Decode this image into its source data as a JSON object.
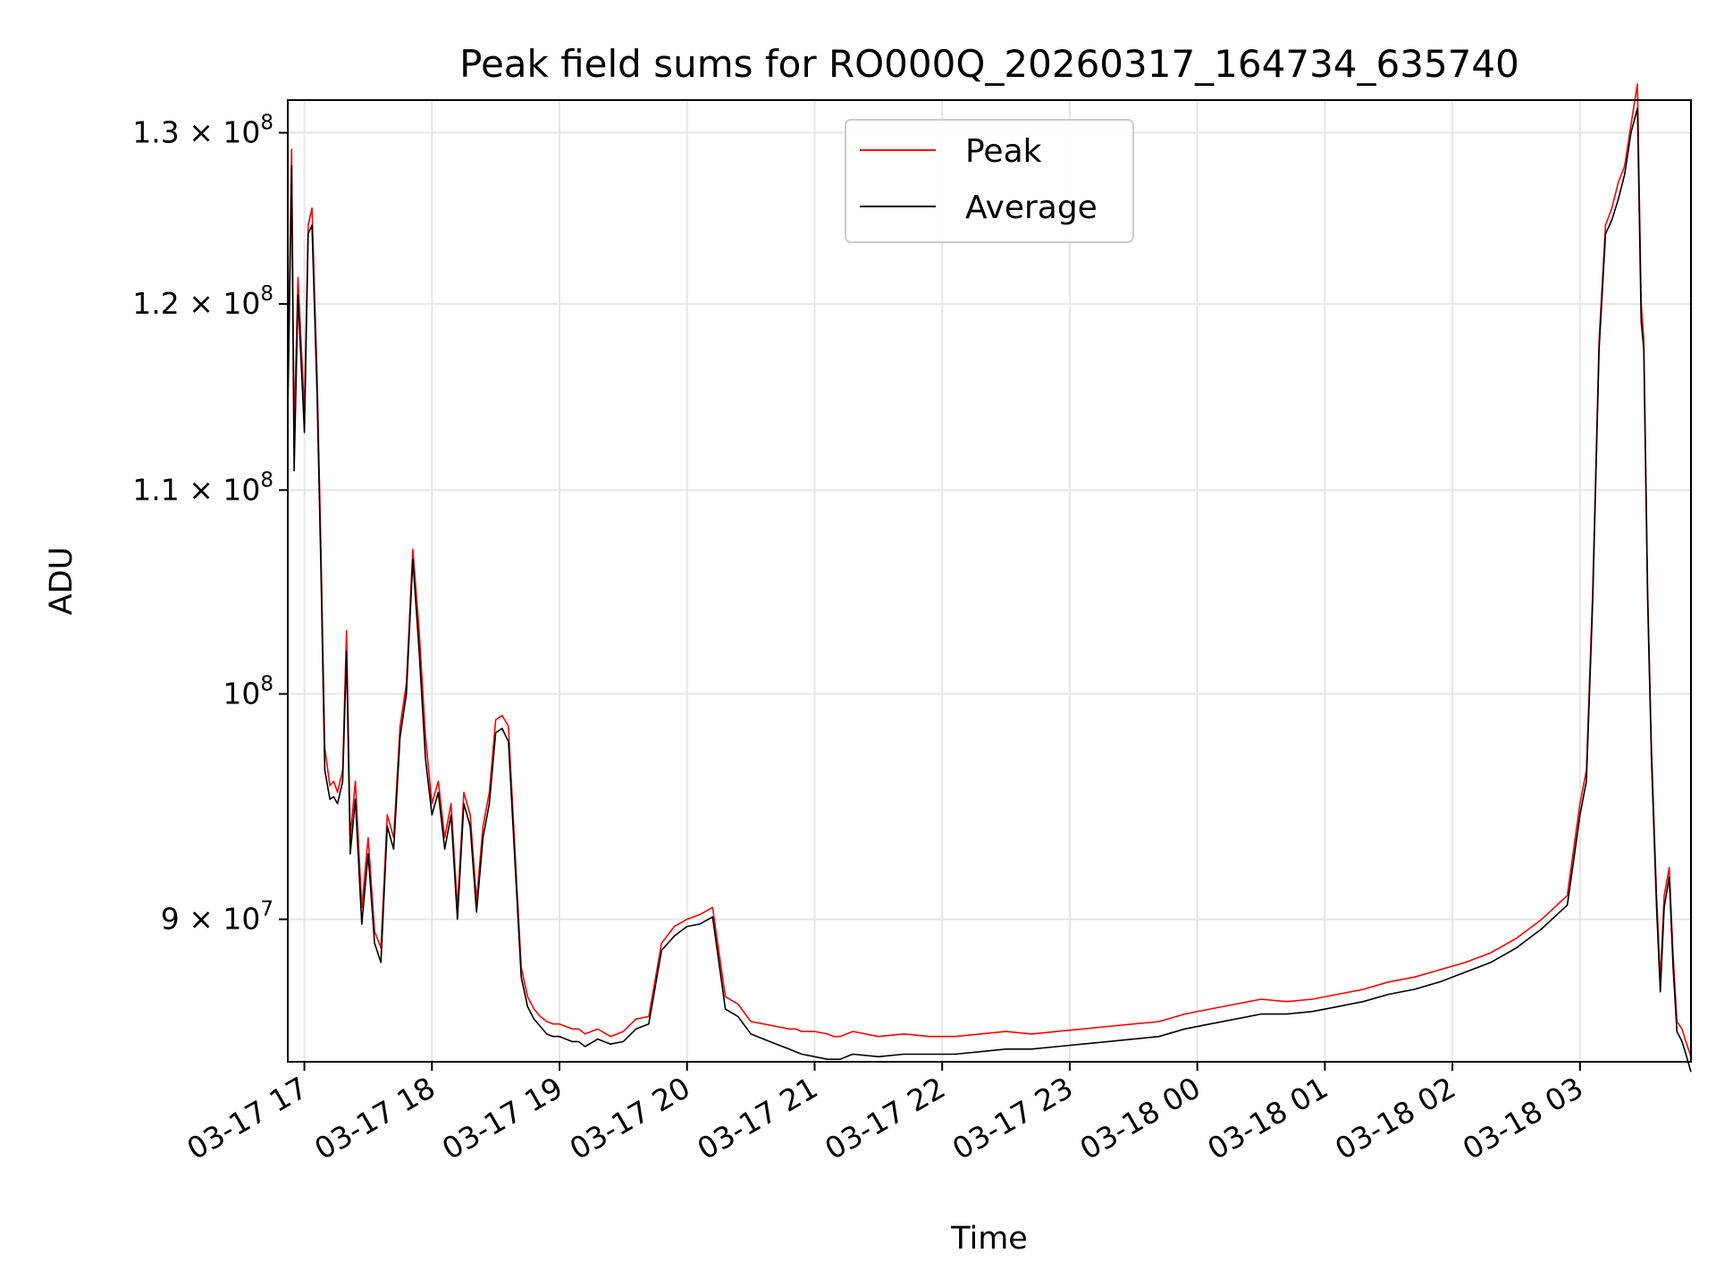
{
  "chart_data": {
    "type": "line",
    "title": "Peak field sums for RO000Q_20260317_164734_635740",
    "xlabel": "Time",
    "ylabel": "ADU",
    "yscale": "log",
    "grid": true,
    "legend": {
      "location": "upper center",
      "entries": [
        "Peak",
        "Average"
      ]
    },
    "colors": {
      "peak": "#ff0000",
      "average": "#000000",
      "grid": "#e6e6e6",
      "axes": "#000000"
    },
    "xlim": [
      16.87,
      27.87
    ],
    "ylim": [
      84200000,
      132000000
    ],
    "x_ticks": [
      {
        "value": 17,
        "label": "03-17 17"
      },
      {
        "value": 18,
        "label": "03-17 18"
      },
      {
        "value": 19,
        "label": "03-17 19"
      },
      {
        "value": 20,
        "label": "03-17 20"
      },
      {
        "value": 21,
        "label": "03-17 21"
      },
      {
        "value": 22,
        "label": "03-17 22"
      },
      {
        "value": 23,
        "label": "03-17 23"
      },
      {
        "value": 24,
        "label": "03-18 00"
      },
      {
        "value": 25,
        "label": "03-18 01"
      },
      {
        "value": 26,
        "label": "03-18 02"
      },
      {
        "value": 27,
        "label": "03-18 03"
      }
    ],
    "y_ticks": [
      {
        "value": 90000000,
        "mantissa": "9",
        "exponent": "7",
        "label": "9 × 10^7"
      },
      {
        "value": 100000000,
        "mantissa": "",
        "exponent": "8",
        "label": "10^8"
      },
      {
        "value": 110000000,
        "mantissa": "1.1",
        "exponent": "8",
        "label": "1.1 × 10^8"
      },
      {
        "value": 120000000,
        "mantissa": "1.2",
        "exponent": "8",
        "label": "1.2 × 10^8"
      },
      {
        "value": 130000000,
        "mantissa": "1.3",
        "exponent": "8",
        "label": "1.3 × 10^8"
      }
    ],
    "x_unit": "hours since 2026-03-17 00:00",
    "series": [
      {
        "name": "Peak",
        "color": "#ff0000",
        "x": [
          16.87,
          16.9,
          16.92,
          16.95,
          16.98,
          17.0,
          17.03,
          17.06,
          17.1,
          17.13,
          17.16,
          17.2,
          17.23,
          17.26,
          17.3,
          17.33,
          17.36,
          17.4,
          17.45,
          17.5,
          17.55,
          17.6,
          17.65,
          17.7,
          17.75,
          17.8,
          17.85,
          17.9,
          17.95,
          18.0,
          18.05,
          18.1,
          18.15,
          18.2,
          18.25,
          18.3,
          18.35,
          18.4,
          18.45,
          18.5,
          18.55,
          18.6,
          18.65,
          18.7,
          18.75,
          18.8,
          18.85,
          18.9,
          18.95,
          19.0,
          19.05,
          19.1,
          19.15,
          19.2,
          19.3,
          19.4,
          19.5,
          19.6,
          19.7,
          19.8,
          19.9,
          20.0,
          20.1,
          20.2,
          20.3,
          20.4,
          20.5,
          20.6,
          20.7,
          20.8,
          20.85,
          20.9,
          21.0,
          21.1,
          21.15,
          21.2,
          21.25,
          21.3,
          21.5,
          21.7,
          21.9,
          22.1,
          22.3,
          22.5,
          22.7,
          22.9,
          23.1,
          23.3,
          23.5,
          23.7,
          23.9,
          24.1,
          24.3,
          24.5,
          24.7,
          24.9,
          25.1,
          25.3,
          25.5,
          25.7,
          25.9,
          26.1,
          26.3,
          26.5,
          26.7,
          26.9,
          26.95,
          27.0,
          27.05,
          27.1,
          27.15,
          27.2,
          27.25,
          27.3,
          27.35,
          27.4,
          27.45,
          27.48,
          27.5,
          27.53,
          27.56,
          27.6,
          27.63,
          27.66,
          27.7,
          27.73,
          27.76,
          27.8,
          27.83,
          27.87
        ],
        "y": [
          115000000,
          129000000,
          113000000,
          121500000,
          117000000,
          114000000,
          124500000,
          125500000,
          116000000,
          107000000,
          97500000,
          95800000,
          96000000,
          95500000,
          96500000,
          103000000,
          93500000,
          96000000,
          90500000,
          93500000,
          89500000,
          88800000,
          94500000,
          93500000,
          98500000,
          100500000,
          107000000,
          103000000,
          98000000,
          95000000,
          96000000,
          93500000,
          95000000,
          90500000,
          95500000,
          94500000,
          90800000,
          94000000,
          95500000,
          98800000,
          99000000,
          98500000,
          93000000,
          88000000,
          86800000,
          86300000,
          86000000,
          85800000,
          85700000,
          85700000,
          85600000,
          85500000,
          85500000,
          85300000,
          85500000,
          85200000,
          85400000,
          85900000,
          86000000,
          89000000,
          89700000,
          90000000,
          90200000,
          90500000,
          86800000,
          86500000,
          85800000,
          85700000,
          85600000,
          85500000,
          85500000,
          85400000,
          85400000,
          85300000,
          85200000,
          85200000,
          85300000,
          85400000,
          85200000,
          85300000,
          85200000,
          85200000,
          85300000,
          85400000,
          85300000,
          85400000,
          85500000,
          85600000,
          85700000,
          85800000,
          86100000,
          86300000,
          86500000,
          86700000,
          86600000,
          86700000,
          86900000,
          87100000,
          87400000,
          87600000,
          87900000,
          88200000,
          88600000,
          89200000,
          90000000,
          91000000,
          93000000,
          95000000,
          96500000,
          105000000,
          118000000,
          124500000,
          125500000,
          127000000,
          128000000,
          130500000,
          133000000,
          120000000,
          118000000,
          105000000,
          97500000,
          91000000,
          87500000,
          91000000,
          92200000,
          88500000,
          85800000,
          85500000,
          85000000,
          84400000
        ]
      },
      {
        "name": "Average",
        "color": "#000000",
        "x": [
          16.87,
          16.9,
          16.92,
          16.95,
          16.98,
          17.0,
          17.03,
          17.06,
          17.1,
          17.13,
          17.16,
          17.2,
          17.23,
          17.26,
          17.3,
          17.33,
          17.36,
          17.4,
          17.45,
          17.5,
          17.55,
          17.6,
          17.65,
          17.7,
          17.75,
          17.8,
          17.85,
          17.9,
          17.95,
          18.0,
          18.05,
          18.1,
          18.15,
          18.2,
          18.25,
          18.3,
          18.35,
          18.4,
          18.45,
          18.5,
          18.55,
          18.6,
          18.65,
          18.7,
          18.75,
          18.8,
          18.85,
          18.9,
          18.95,
          19.0,
          19.05,
          19.1,
          19.15,
          19.2,
          19.3,
          19.4,
          19.5,
          19.6,
          19.7,
          19.8,
          19.9,
          20.0,
          20.1,
          20.2,
          20.3,
          20.4,
          20.5,
          20.6,
          20.7,
          20.8,
          20.85,
          20.9,
          21.0,
          21.1,
          21.15,
          21.2,
          21.25,
          21.3,
          21.5,
          21.7,
          21.9,
          22.1,
          22.3,
          22.5,
          22.7,
          22.9,
          23.1,
          23.3,
          23.5,
          23.7,
          23.9,
          24.1,
          24.3,
          24.5,
          24.7,
          24.9,
          25.1,
          25.3,
          25.5,
          25.7,
          25.9,
          26.1,
          26.3,
          26.5,
          26.7,
          26.9,
          26.95,
          27.0,
          27.05,
          27.1,
          27.15,
          27.2,
          27.25,
          27.3,
          27.35,
          27.4,
          27.45,
          27.48,
          27.5,
          27.53,
          27.56,
          27.6,
          27.63,
          27.66,
          27.7,
          27.73,
          27.76,
          27.8,
          27.83,
          27.87
        ],
        "y": [
          114000000,
          128000000,
          111000000,
          120500000,
          116000000,
          113000000,
          124000000,
          124500000,
          115000000,
          106000000,
          96500000,
          95200000,
          95300000,
          95000000,
          96000000,
          102000000,
          92800000,
          95200000,
          89800000,
          92800000,
          89000000,
          88200000,
          94000000,
          93000000,
          98000000,
          100000000,
          106500000,
          102000000,
          97000000,
          94500000,
          95500000,
          93000000,
          94500000,
          90000000,
          95000000,
          94000000,
          90300000,
          93500000,
          95000000,
          98200000,
          98400000,
          97800000,
          92500000,
          87600000,
          86400000,
          85900000,
          85600000,
          85300000,
          85200000,
          85200000,
          85100000,
          85000000,
          85000000,
          84800000,
          85100000,
          84900000,
          85000000,
          85500000,
          85700000,
          88700000,
          89300000,
          89700000,
          89800000,
          90100000,
          86300000,
          86000000,
          85300000,
          85100000,
          84900000,
          84700000,
          84600000,
          84500000,
          84400000,
          84300000,
          84300000,
          84300000,
          84400000,
          84500000,
          84400000,
          84500000,
          84500000,
          84500000,
          84600000,
          84700000,
          84700000,
          84800000,
          84900000,
          85000000,
          85100000,
          85200000,
          85500000,
          85700000,
          85900000,
          86100000,
          86100000,
          86200000,
          86400000,
          86600000,
          86900000,
          87100000,
          87400000,
          87800000,
          88200000,
          88800000,
          89600000,
          90600000,
          92500000,
          94500000,
          96000000,
          104500000,
          117500000,
          124000000,
          124800000,
          126000000,
          127500000,
          130000000,
          131500000,
          119000000,
          117500000,
          104500000,
          97000000,
          90500000,
          87000000,
          90500000,
          91800000,
          88000000,
          85400000,
          85000000,
          84500000,
          83800000
        ]
      }
    ],
    "annotations": []
  }
}
